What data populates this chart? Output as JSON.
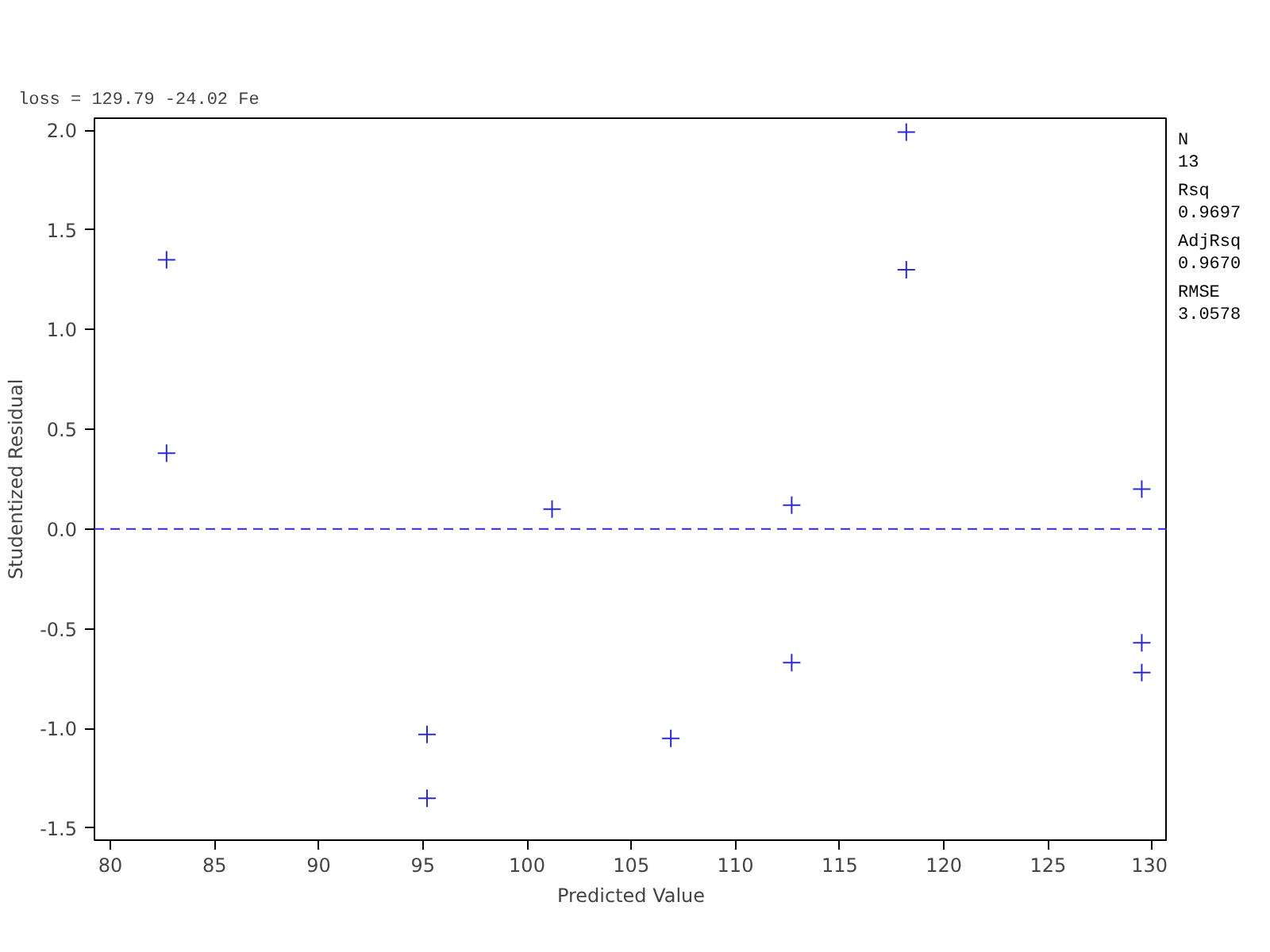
{
  "chart_data": {
    "type": "scatter",
    "title": "loss = 129.79 -24.02 Fe",
    "xlabel": "Predicted Value",
    "ylabel": "Studentized Residual",
    "x": [
      82.7,
      82.7,
      95.2,
      95.2,
      101.2,
      106.9,
      112.7,
      112.7,
      118.2,
      118.2,
      129.5,
      129.5,
      129.5
    ],
    "series": [
      {
        "color": "#2b2bd0",
        "values": [
          1.35,
          0.38,
          -1.03,
          -1.35,
          0.1,
          -1.05,
          0.12,
          -0.67,
          1.99,
          1.3,
          0.2,
          -0.57,
          -0.72
        ]
      }
    ],
    "xlim": [
      79.24,
      130.74
    ],
    "ylim": [
      -1.56,
      2.06
    ],
    "xticks": [
      80,
      85,
      90,
      95,
      100,
      105,
      110,
      115,
      120,
      125,
      130
    ],
    "yticks": [
      {
        "value": -1.5,
        "label": "-1.5"
      },
      {
        "value": -1.0,
        "label": "-1.0"
      },
      {
        "value": -0.5,
        "label": "-0.5"
      },
      {
        "value": 0,
        "label": "0.0"
      },
      {
        "value": 0.5,
        "label": "0.5"
      },
      {
        "value": 1.0,
        "label": "1.0"
      },
      {
        "value": 1.5,
        "label": "1.5"
      },
      {
        "value": 2.0,
        "label": "2.0"
      }
    ],
    "ref_lines": [
      {
        "axis": "y",
        "value": 0,
        "color": "#2b2bd0",
        "line_style": "dashed"
      }
    ],
    "annotations": [
      "N",
      "13",
      "Rsq",
      "0.9697",
      "AdjRsq",
      "0.9670",
      "RMSE",
      "3.0578"
    ],
    "marker": "cross",
    "grid": false
  }
}
